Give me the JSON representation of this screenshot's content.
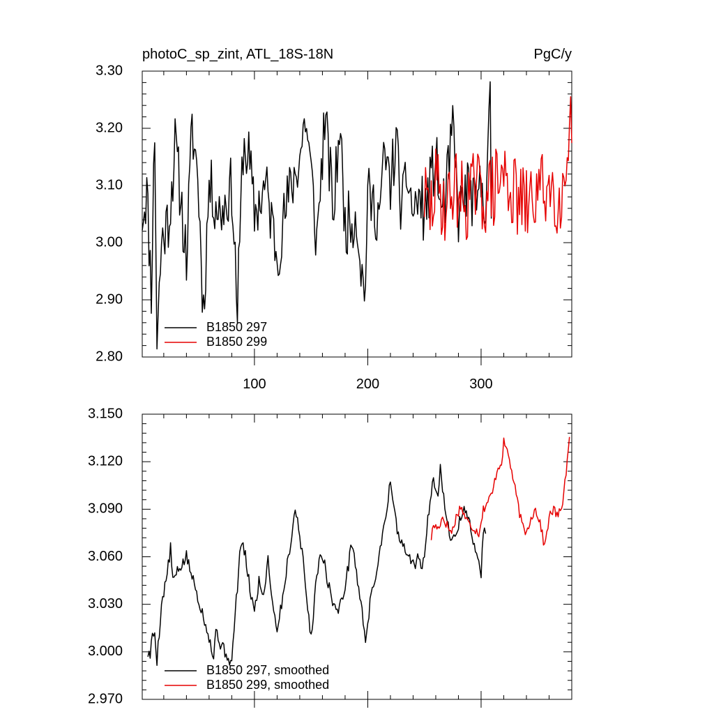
{
  "chart_data": [
    {
      "type": "line",
      "title_left": "photoC_sp_zint, ATL_18S-18N",
      "title_right": "PgC/y",
      "xlim": [
        1,
        380
      ],
      "ylim": [
        2.8,
        3.3
      ],
      "x_ticks": [
        100,
        200,
        300
      ],
      "y_ticks": [
        "2.80",
        "2.90",
        "3.00",
        "3.10",
        "3.20",
        "3.30"
      ],
      "legend_position": "bottom-left",
      "series": [
        {
          "name": "B1850 297",
          "color": "#000000",
          "x_start": 1,
          "x_end": 309,
          "keypoints": [
            [
              1,
              3.05
            ],
            [
              5,
              3.09
            ],
            [
              9,
              2.92
            ],
            [
              12,
              3.2
            ],
            [
              14,
              2.83
            ],
            [
              18,
              3.0
            ],
            [
              25,
              3.05
            ],
            [
              30,
              3.17
            ],
            [
              35,
              3.08
            ],
            [
              40,
              2.97
            ],
            [
              45,
              3.2
            ],
            [
              50,
              3.12
            ],
            [
              55,
              2.88
            ],
            [
              60,
              3.1
            ],
            [
              70,
              3.05
            ],
            [
              80,
              3.1
            ],
            [
              85,
              2.88
            ],
            [
              90,
              3.17
            ],
            [
              95,
              3.15
            ],
            [
              100,
              3.05
            ],
            [
              110,
              3.1
            ],
            [
              120,
              2.98
            ],
            [
              130,
              3.08
            ],
            [
              140,
              3.15
            ],
            [
              145,
              3.22
            ],
            [
              150,
              3.12
            ],
            [
              155,
              3.0
            ],
            [
              162,
              3.22
            ],
            [
              170,
              3.05
            ],
            [
              175,
              3.21
            ],
            [
              180,
              3.03
            ],
            [
              190,
              3.05
            ],
            [
              197,
              2.9
            ],
            [
              200,
              3.08
            ],
            [
              210,
              3.05
            ],
            [
              215,
              3.15
            ],
            [
              220,
              3.1
            ],
            [
              225,
              3.18
            ],
            [
              230,
              3.05
            ],
            [
              235,
              3.12
            ],
            [
              240,
              3.05
            ],
            [
              245,
              3.08
            ],
            [
              250,
              3.05
            ],
            [
              255,
              3.1
            ],
            [
              260,
              3.15
            ],
            [
              265,
              3.05
            ],
            [
              270,
              3.1
            ],
            [
              275,
              3.2
            ],
            [
              280,
              3.05
            ],
            [
              285,
              3.08
            ],
            [
              290,
              3.1
            ],
            [
              295,
              3.05
            ],
            [
              300,
              3.1
            ],
            [
              304,
              3.08
            ],
            [
              308,
              3.24
            ],
            [
              309,
              3.0
            ]
          ],
          "noise": 0.055,
          "seed": 11
        },
        {
          "name": "B1850 299",
          "color": "#e60000",
          "x_start": 250,
          "x_end": 380,
          "keypoints": [
            [
              250,
              3.08
            ],
            [
              255,
              3.05
            ],
            [
              260,
              3.1
            ],
            [
              265,
              3.08
            ],
            [
              270,
              3.06
            ],
            [
              275,
              3.1
            ],
            [
              280,
              3.09
            ],
            [
              285,
              3.07
            ],
            [
              290,
              3.08
            ],
            [
              295,
              3.1
            ],
            [
              300,
              3.08
            ],
            [
              310,
              3.09
            ],
            [
              320,
              3.12
            ],
            [
              330,
              3.08
            ],
            [
              340,
              3.06
            ],
            [
              350,
              3.09
            ],
            [
              360,
              3.1
            ],
            [
              370,
              3.08
            ],
            [
              375,
              3.12
            ],
            [
              378,
              3.25
            ],
            [
              380,
              3.2
            ]
          ],
          "noise": 0.07,
          "seed": 29
        }
      ]
    },
    {
      "type": "line",
      "xlim": [
        1,
        380
      ],
      "ylim": [
        2.97,
        3.15
      ],
      "x_ticks": [
        100,
        200,
        300
      ],
      "y_ticks": [
        "2.970",
        "3.000",
        "3.030",
        "3.060",
        "3.090",
        "3.120",
        "3.150"
      ],
      "legend_position": "bottom-left",
      "series": [
        {
          "name": "B1850 297, smoothed",
          "color": "#000000",
          "x_start": 6,
          "x_end": 304,
          "keypoints": [
            [
              6,
              2.999
            ],
            [
              8,
              2.998
            ],
            [
              10,
              3.01
            ],
            [
              12,
              3.012
            ],
            [
              14,
              2.995
            ],
            [
              18,
              3.03
            ],
            [
              22,
              3.045
            ],
            [
              26,
              3.065
            ],
            [
              28,
              3.045
            ],
            [
              32,
              3.05
            ],
            [
              36,
              3.055
            ],
            [
              40,
              3.06
            ],
            [
              44,
              3.05
            ],
            [
              48,
              3.04
            ],
            [
              52,
              3.03
            ],
            [
              56,
              3.02
            ],
            [
              60,
              3.01
            ],
            [
              64,
              2.995
            ],
            [
              66,
              3.015
            ],
            [
              70,
              3.005
            ],
            [
              74,
              3.0
            ],
            [
              78,
              2.995
            ],
            [
              80,
              2.992
            ],
            [
              82,
              3.015
            ],
            [
              86,
              3.05
            ],
            [
              88,
              3.07
            ],
            [
              92,
              3.06
            ],
            [
              96,
              3.04
            ],
            [
              100,
              3.025
            ],
            [
              104,
              3.045
            ],
            [
              108,
              3.035
            ],
            [
              112,
              3.06
            ],
            [
              116,
              3.03
            ],
            [
              120,
              3.015
            ],
            [
              124,
              3.03
            ],
            [
              128,
              3.05
            ],
            [
              132,
              3.07
            ],
            [
              136,
              3.09
            ],
            [
              140,
              3.075
            ],
            [
              144,
              3.05
            ],
            [
              148,
              3.02
            ],
            [
              150,
              3.01
            ],
            [
              154,
              3.04
            ],
            [
              158,
              3.065
            ],
            [
              162,
              3.055
            ],
            [
              166,
              3.04
            ],
            [
              170,
              3.03
            ],
            [
              174,
              3.025
            ],
            [
              178,
              3.035
            ],
            [
              182,
              3.05
            ],
            [
              186,
              3.07
            ],
            [
              190,
              3.05
            ],
            [
              194,
              3.03
            ],
            [
              198,
              3.008
            ],
            [
              202,
              3.03
            ],
            [
              206,
              3.045
            ],
            [
              210,
              3.06
            ],
            [
              214,
              3.08
            ],
            [
              218,
              3.095
            ],
            [
              220,
              3.11
            ],
            [
              224,
              3.085
            ],
            [
              228,
              3.07
            ],
            [
              232,
              3.065
            ],
            [
              236,
              3.06
            ],
            [
              240,
              3.055
            ],
            [
              244,
              3.058
            ],
            [
              248,
              3.055
            ],
            [
              250,
              3.06
            ],
            [
              254,
              3.09
            ],
            [
              258,
              3.11
            ],
            [
              262,
              3.1
            ],
            [
              264,
              3.118
            ],
            [
              268,
              3.09
            ],
            [
              272,
              3.075
            ],
            [
              276,
              3.07
            ],
            [
              280,
              3.08
            ],
            [
              284,
              3.09
            ],
            [
              288,
              3.085
            ],
            [
              292,
              3.075
            ],
            [
              296,
              3.06
            ],
            [
              300,
              3.05
            ],
            [
              302,
              3.075
            ],
            [
              304,
              3.075
            ]
          ],
          "noise": 0.004,
          "seed": 5
        },
        {
          "name": "B1850 299, smoothed",
          "color": "#e60000",
          "x_start": 256,
          "x_end": 378,
          "keypoints": [
            [
              256,
              3.072
            ],
            [
              258,
              3.08
            ],
            [
              262,
              3.078
            ],
            [
              266,
              3.085
            ],
            [
              270,
              3.08
            ],
            [
              274,
              3.075
            ],
            [
              278,
              3.085
            ],
            [
              282,
              3.092
            ],
            [
              286,
              3.085
            ],
            [
              290,
              3.08
            ],
            [
              294,
              3.078
            ],
            [
              298,
              3.075
            ],
            [
              302,
              3.09
            ],
            [
              306,
              3.095
            ],
            [
              310,
              3.1
            ],
            [
              314,
              3.115
            ],
            [
              318,
              3.12
            ],
            [
              320,
              3.132
            ],
            [
              324,
              3.125
            ],
            [
              328,
              3.11
            ],
            [
              332,
              3.095
            ],
            [
              336,
              3.08
            ],
            [
              340,
              3.075
            ],
            [
              344,
              3.085
            ],
            [
              348,
              3.09
            ],
            [
              352,
              3.082
            ],
            [
              356,
              3.066
            ],
            [
              360,
              3.085
            ],
            [
              364,
              3.09
            ],
            [
              368,
              3.085
            ],
            [
              372,
              3.095
            ],
            [
              376,
              3.12
            ],
            [
              378,
              3.133
            ]
          ],
          "noise": 0.003,
          "seed": 17
        }
      ]
    }
  ]
}
